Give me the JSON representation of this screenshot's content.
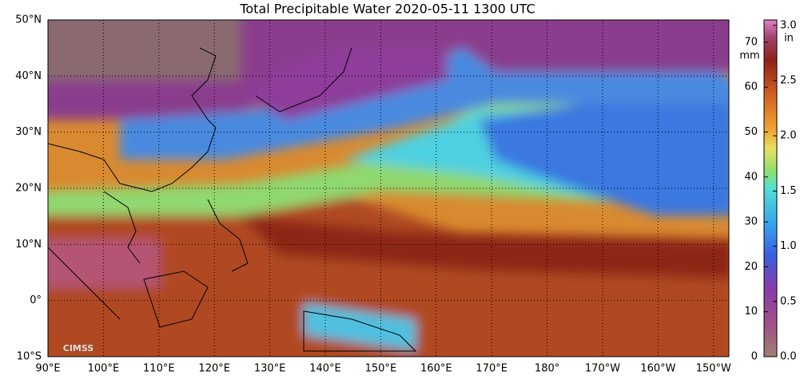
{
  "title": "Total Precipitable Water  2020-05-11 1300 UTC",
  "lat_labels": [
    "50°N",
    "40°N",
    "30°N",
    "20°N",
    "10°N",
    "0°",
    "10°S"
  ],
  "lon_labels": [
    "90°E",
    "100°E",
    "110°E",
    "120°E",
    "130°E",
    "140°E",
    "150°E",
    "160°E",
    "170°E",
    "180°",
    "170°W",
    "160°W",
    "150°W"
  ],
  "colorbar": {
    "mm_unit": "mm",
    "mm_ticks": [
      "0",
      "10",
      "20",
      "30",
      "40",
      "50",
      "60",
      "70"
    ],
    "in_unit": "in",
    "in_ticks": [
      "0.0",
      "0.5",
      "1.0",
      "1.5",
      "2.0",
      "2.5",
      "3.0"
    ]
  },
  "logo": "CIMSS"
}
